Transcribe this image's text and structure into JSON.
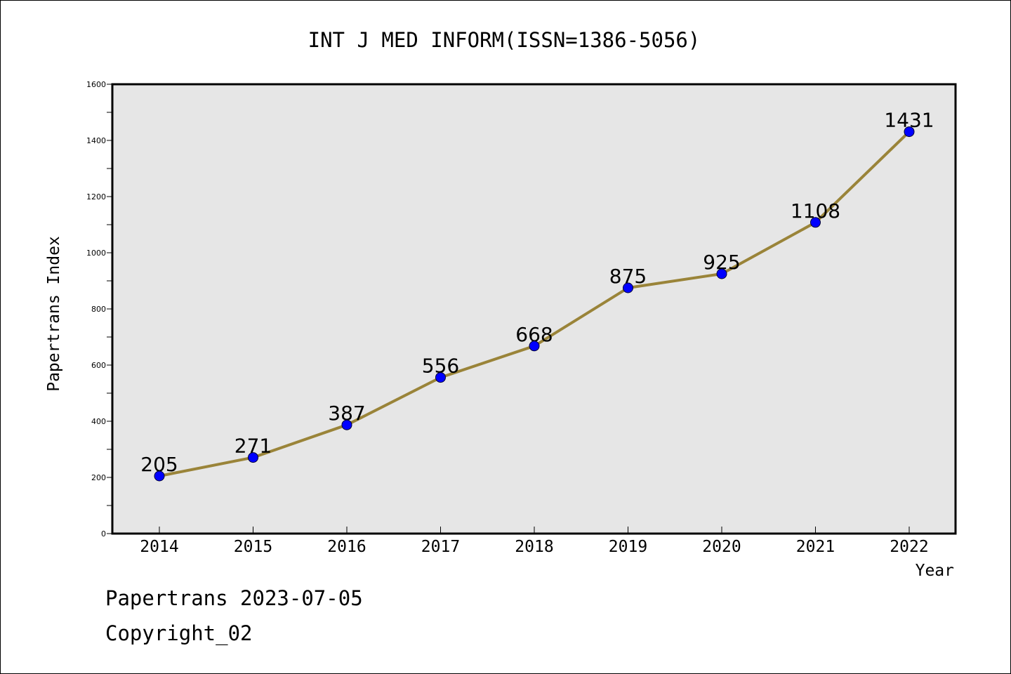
{
  "chart_data": {
    "type": "line",
    "title": "INT J MED INFORM(ISSN=1386-5056)",
    "xlabel": "Year",
    "ylabel": "Papertrans Index",
    "categories": [
      "2014",
      "2015",
      "2016",
      "2017",
      "2018",
      "2019",
      "2020",
      "2021",
      "2022"
    ],
    "values": [
      205,
      271,
      387,
      556,
      668,
      875,
      925,
      1108,
      1431
    ],
    "data_labels": [
      "205",
      "271",
      "387",
      "556",
      "668",
      "875",
      "925",
      "1108",
      "1431"
    ],
    "ylim": [
      0,
      1600
    ],
    "yticks": [
      "0",
      "200",
      "400",
      "600",
      "800",
      "1000",
      "1200",
      "1400",
      "1600"
    ],
    "grid": false,
    "background": "#e6e6e6",
    "line_color": "#9a8439",
    "marker_color": "#0000ff"
  },
  "footer": {
    "line1": "Papertrans 2023-07-05",
    "line2": "Copyright_02"
  }
}
